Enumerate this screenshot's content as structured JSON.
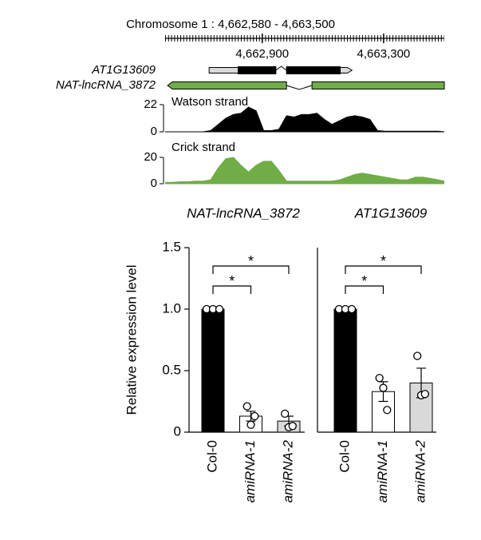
{
  "chart_data": [
    {
      "type": "genome-track",
      "title": "Chromosome 1 : 4,662,580 - 4,663,500",
      "xlim": [
        4662580,
        4663500
      ],
      "xticks": [
        {
          "value": 4662900,
          "label": "4,662,900"
        },
        {
          "value": 4663300,
          "label": "4,663,300"
        }
      ],
      "genes": [
        {
          "name": "AT1G13609",
          "strand": "+",
          "color": "#000000",
          "utr_color": "#d9d9d9",
          "segments": [
            {
              "kind": "utr",
              "start": 4662725,
              "end": 4662821
            },
            {
              "kind": "exon",
              "start": 4662821,
              "end": 4662945
            },
            {
              "kind": "exon",
              "start": 4662980,
              "end": 4663157
            },
            {
              "kind": "utr",
              "start": 4663157,
              "end": 4663196
            }
          ]
        },
        {
          "name": "NAT-lncRNA_3872",
          "strand": "-",
          "color": "#70ad47",
          "utr_color": "#70ad47",
          "segments": [
            {
              "kind": "exon",
              "start": 4662588,
              "end": 4662980
            },
            {
              "kind": "exon",
              "start": 4663064,
              "end": 4663500
            }
          ]
        }
      ],
      "region_labels": [
        "NAT-lncRNA_3872",
        "AT1G13609"
      ]
    },
    {
      "type": "area",
      "label": "Watson strand",
      "color": "#000000",
      "ylim": [
        0,
        22
      ],
      "yticks": [
        0,
        22
      ],
      "x": [
        4662580,
        4662605,
        4662630,
        4662655,
        4662680,
        4662705,
        4662730,
        4662755,
        4662780,
        4662805,
        4662830,
        4662855,
        4662880,
        4662905,
        4662930,
        4662955,
        4662980,
        4663005,
        4663030,
        4663055,
        4663080,
        4663105,
        4663130,
        4663155,
        4663180,
        4663205,
        4663230,
        4663255,
        4663280,
        4663305,
        4663330,
        4663355,
        4663380,
        4663405,
        4663430,
        4663455,
        4663480,
        4663500
      ],
      "values": [
        0,
        0,
        0,
        0,
        0,
        0,
        1,
        6,
        11,
        14,
        15,
        20,
        17,
        1,
        1,
        2,
        13,
        12,
        14,
        14,
        15,
        10,
        6,
        9,
        12,
        13,
        12,
        10,
        1,
        0.5,
        0.5,
        0.5,
        0.5,
        0.5,
        0.5,
        0.5,
        0.5,
        0
      ]
    },
    {
      "type": "area",
      "label": "Crick strand",
      "color": "#70ad47",
      "ylim": [
        0,
        20
      ],
      "yticks": [
        0,
        20
      ],
      "x": [
        4662580,
        4662605,
        4662630,
        4662655,
        4662680,
        4662705,
        4662730,
        4662755,
        4662780,
        4662805,
        4662830,
        4662855,
        4662880,
        4662905,
        4662930,
        4662955,
        4662980,
        4663005,
        4663030,
        4663055,
        4663080,
        4663105,
        4663130,
        4663155,
        4663180,
        4663205,
        4663230,
        4663255,
        4663280,
        4663305,
        4663330,
        4663355,
        4663380,
        4663405,
        4663430,
        4663455,
        4663480,
        4663500
      ],
      "values": [
        1,
        1,
        1.5,
        1.5,
        2,
        2,
        3,
        12,
        19,
        20,
        14,
        9,
        14,
        17,
        17,
        10,
        2,
        2,
        2,
        2,
        2,
        2,
        2,
        3,
        5,
        7,
        8,
        7,
        6,
        5,
        4,
        3,
        3,
        5,
        5,
        4,
        3,
        2
      ]
    },
    {
      "type": "bar",
      "ylabel": "Relative expression level",
      "ylim": [
        0,
        1.5
      ],
      "yticks": [
        0,
        0.5,
        {
          "value": 1,
          "label": "1.0"
        },
        1.5
      ],
      "categories": [
        "Col-0",
        "amiRNA-1",
        "amiRNA-2"
      ],
      "colors": [
        "#000000",
        "#ffffff",
        "#d9d9d9"
      ],
      "values": [
        1.0,
        0.13,
        0.09
      ],
      "errors": [
        0,
        0.04,
        0.04
      ],
      "points": [
        [
          1,
          1,
          1
        ],
        [
          0.21,
          0.06,
          0.13
        ],
        [
          0.15,
          0.04,
          0.05
        ]
      ],
      "significance": [
        {
          "label": "*",
          "pair": [
            "Col-0",
            "amiRNA-1"
          ]
        },
        {
          "label": "*",
          "pair": [
            "Col-0",
            "amiRNA-2"
          ]
        }
      ]
    },
    {
      "type": "bar",
      "ylim": [
        0,
        1.5
      ],
      "categories": [
        "Col-0",
        "amiRNA-1",
        "amiRNA-2"
      ],
      "colors": [
        "#000000",
        "#ffffff",
        "#d9d9d9"
      ],
      "values": [
        1.0,
        0.33,
        0.4
      ],
      "errors": [
        0,
        0.08,
        0.12
      ],
      "points": [
        [
          1,
          1,
          1
        ],
        [
          0.44,
          0.36,
          0.18
        ],
        [
          0.62,
          0.3,
          0.31
        ]
      ],
      "significance": [
        {
          "label": "*",
          "pair": [
            "Col-0",
            "amiRNA-1"
          ]
        },
        {
          "label": "*",
          "pair": [
            "Col-0",
            "amiRNA-2"
          ]
        }
      ]
    }
  ]
}
